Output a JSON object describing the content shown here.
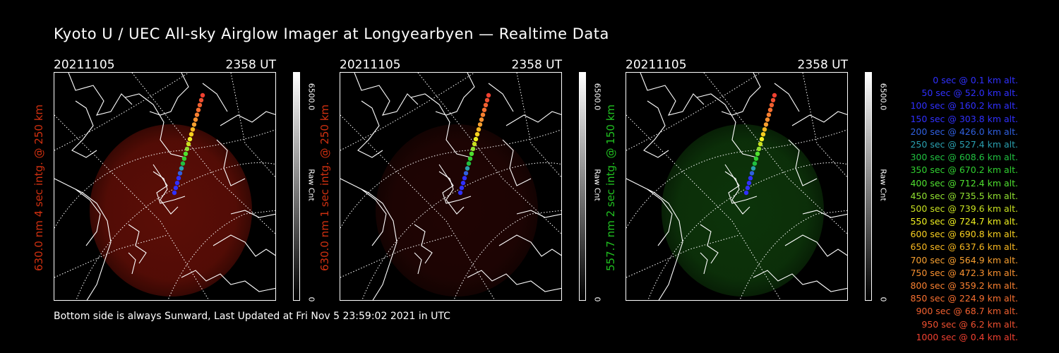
{
  "title": "Kyoto U / UEC All-sky Airglow Imager at Longyearbyen — Realtime Data",
  "footer": "Bottom side is always Sunward, Last Updated at Fri Nov  5 23:59:02 2021 in UTC",
  "panels": [
    {
      "date": "20211105",
      "time": "2358 UT",
      "ylabel": "630.0 nm 4 sec intg. @ 250 km",
      "label_color": "#d03010",
      "glow_color": "#7a1208",
      "glow_opacity": 0.75,
      "colorbar_max": "6500.0",
      "colorbar_label": "Raw Cnt",
      "colorbar_min": "0"
    },
    {
      "date": "20211105",
      "time": "2358 UT",
      "ylabel": "630.0 nm 1 sec intg. @ 250 km",
      "label_color": "#d03010",
      "glow_color": "#3a0806",
      "glow_opacity": 0.55,
      "colorbar_max": "6500.0",
      "colorbar_label": "Raw Cnt",
      "colorbar_min": "0"
    },
    {
      "date": "20211105",
      "time": "2358 UT",
      "ylabel": "557.7 nm 2 sec intg. @ 150 km",
      "label_color": "#20c020",
      "glow_color": "#124a0e",
      "glow_opacity": 0.7,
      "colorbar_max": "6500.0",
      "colorbar_label": "Raw Cnt",
      "colorbar_min": "0"
    }
  ],
  "legend": [
    {
      "text": "0 sec @   0.1 km alt.",
      "color": "#3030ff"
    },
    {
      "text": "50 sec @  52.0 km alt.",
      "color": "#3030ff"
    },
    {
      "text": "100 sec @ 160.2 km alt.",
      "color": "#3030ff"
    },
    {
      "text": "150 sec @ 303.8 km alt.",
      "color": "#3030ff"
    },
    {
      "text": "200 sec @ 426.0 km alt.",
      "color": "#3060e0"
    },
    {
      "text": "250 sec @ 527.4 km alt.",
      "color": "#2aa0b0"
    },
    {
      "text": "300 sec @ 608.6 km alt.",
      "color": "#20c040"
    },
    {
      "text": "350 sec @ 670.2 km alt.",
      "color": "#30d030"
    },
    {
      "text": "400 sec @ 712.4 km alt.",
      "color": "#50e030"
    },
    {
      "text": "450 sec @ 735.5 km alt.",
      "color": "#90e030"
    },
    {
      "text": "500 sec @ 739.6 km alt.",
      "color": "#c8e020"
    },
    {
      "text": "550 sec @ 724.7 km alt.",
      "color": "#f0f020"
    },
    {
      "text": "600 sec @ 690.8 km alt.",
      "color": "#f8d020"
    },
    {
      "text": "650 sec @ 637.6 km alt.",
      "color": "#f8b820"
    },
    {
      "text": "700 sec @ 564.9 km alt.",
      "color": "#f8a030"
    },
    {
      "text": "750 sec @ 472.3 km alt.",
      "color": "#f89030"
    },
    {
      "text": "800 sec @ 359.2 km alt.",
      "color": "#f88030"
    },
    {
      "text": "850 sec @ 224.9 km alt.",
      "color": "#f87030"
    },
    {
      "text": "900 sec @  68.7 km alt.",
      "color": "#f06030"
    },
    {
      "text": "950 sec @   6.2 km alt.",
      "color": "#f05030"
    },
    {
      "text": "1000 sec @   0.4 km alt.",
      "color": "#f04030"
    }
  ]
}
